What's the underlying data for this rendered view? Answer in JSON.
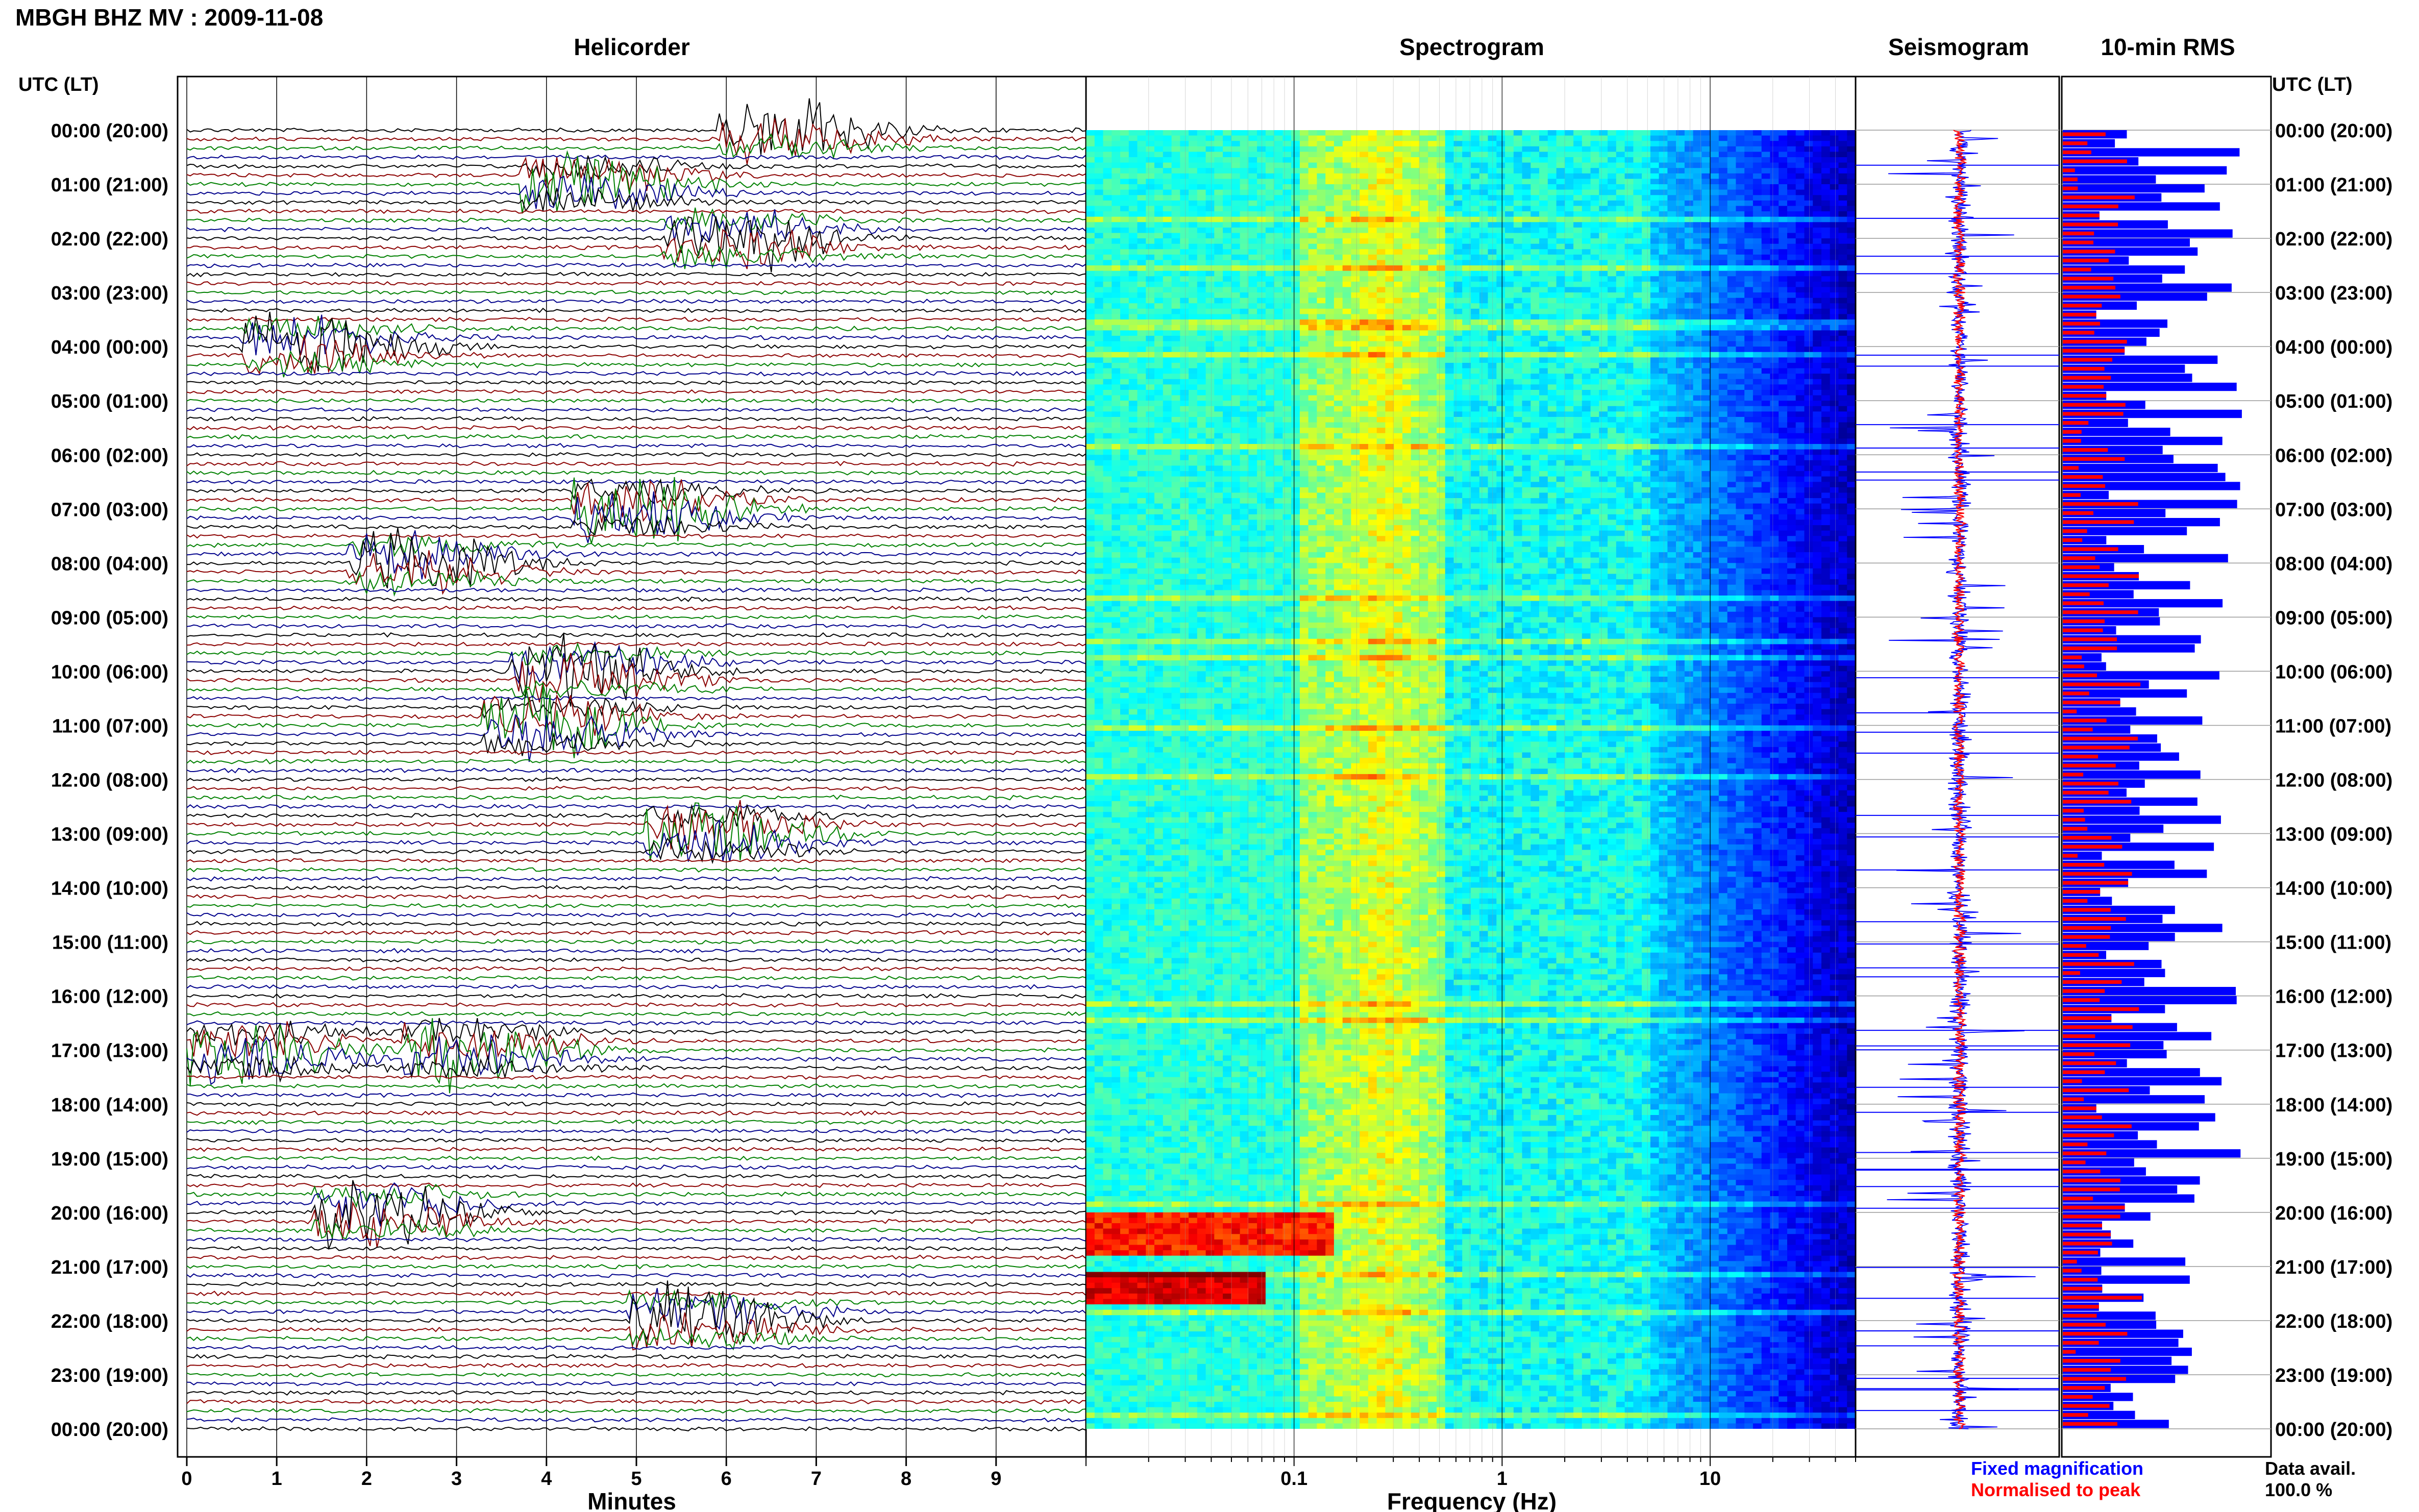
{
  "header": {
    "station_title": "MBGH BHZ MV : 2009-11-08",
    "utc_label_left": "UTC (LT)",
    "utc_label_right": "UTC (LT)"
  },
  "panels": {
    "helicorder": "Helicorder",
    "spectrogram": "Spectrogram",
    "seismogram": "Seismogram",
    "rms": "10-min RMS"
  },
  "time_labels": [
    "00:00 (20:00)",
    "01:00 (21:00)",
    "02:00 (22:00)",
    "03:00 (23:00)",
    "04:00 (00:00)",
    "05:00 (01:00)",
    "06:00 (02:00)",
    "07:00 (03:00)",
    "08:00 (04:00)",
    "09:00 (05:00)",
    "10:00 (06:00)",
    "11:00 (07:00)",
    "12:00 (08:00)",
    "13:00 (09:00)",
    "14:00 (10:00)",
    "15:00 (11:00)",
    "16:00 (12:00)",
    "17:00 (13:00)",
    "18:00 (14:00)",
    "19:00 (15:00)",
    "20:00 (16:00)",
    "21:00 (17:00)",
    "22:00 (18:00)",
    "23:00 (19:00)",
    "00:00 (20:00)"
  ],
  "legend": {
    "fixed": "Fixed magnification",
    "normalised": "Normalised to peak",
    "data_avail_label": "Data avail.",
    "data_avail_value": "100.0 %"
  },
  "colors": {
    "blue": "#0000ff",
    "red": "#ff0000",
    "trace_black": "#000000",
    "trace_red": "#8b0000",
    "trace_green": "#008000",
    "trace_blue": "#00008b"
  },
  "chart_data": [
    {
      "type": "line",
      "title": "Helicorder",
      "xlabel": "Minutes",
      "x_ticks": [
        "0",
        "1",
        "2",
        "3",
        "4",
        "5",
        "6",
        "7",
        "8",
        "9"
      ],
      "xlim": [
        0,
        10
      ],
      "rows_per_hour": 6,
      "event_minutes": [
        {
          "hour": 0,
          "minute": 6.5
        },
        {
          "hour": 1,
          "minute": 4.3
        },
        {
          "hour": 2,
          "minute": 5.9
        },
        {
          "hour": 4,
          "minute": 1.2
        },
        {
          "hour": 7,
          "minute": 4.9
        },
        {
          "hour": 8,
          "minute": 2.4
        },
        {
          "hour": 10,
          "minute": 4.2
        },
        {
          "hour": 11,
          "minute": 3.9
        },
        {
          "hour": 13,
          "minute": 5.7
        },
        {
          "hour": 17,
          "minute": 0.6
        },
        {
          "hour": 17,
          "minute": 3.0
        },
        {
          "hour": 20,
          "minute": 2.0
        },
        {
          "hour": 22,
          "minute": 5.5
        }
      ]
    },
    {
      "type": "heatmap",
      "title": "Spectrogram",
      "xlabel": "Frequency (Hz)",
      "x_scale": "log",
      "x_ticks": [
        "0.1",
        "1",
        "10"
      ],
      "xlim": [
        0.01,
        50
      ]
    },
    {
      "type": "line",
      "title": "Seismogram",
      "series": [
        {
          "name": "Fixed magnification",
          "color": "#0000ff"
        },
        {
          "name": "Normalised to peak",
          "color": "#ff0000"
        }
      ]
    },
    {
      "type": "bar",
      "title": "10-min RMS",
      "orientation": "horizontal",
      "series": [
        {
          "name": "Fixed magnification",
          "color": "#0000ff"
        },
        {
          "name": "Normalised to peak",
          "color": "#ff0000"
        }
      ],
      "y_hours": [
        0,
        24
      ]
    }
  ]
}
